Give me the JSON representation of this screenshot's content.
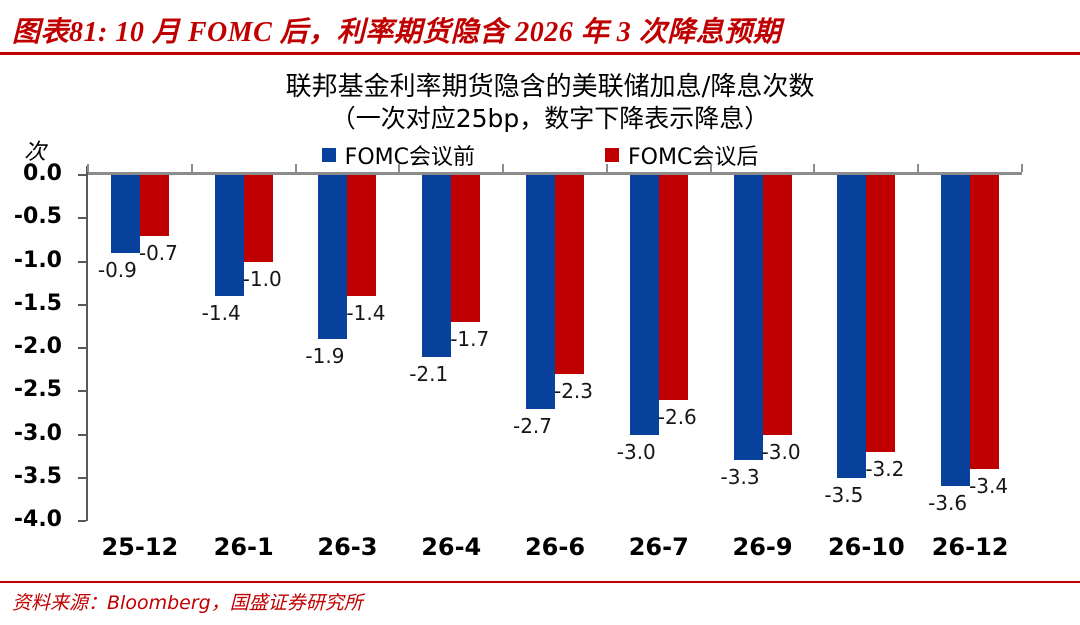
{
  "figure": {
    "title": "图表81: 10 月 FOMC 后，利率期货隐含 2026 年 3 次降息预期",
    "source": "资料来源：Bloomberg，国盛证券研究所"
  },
  "chart_data": {
    "type": "bar",
    "title": "联邦基金利率期货隐含的美联储加息/降息次数",
    "subtitle": "（一次对应25bp，数字下降表示降息）",
    "unit_label": "次",
    "categories": [
      "25-12",
      "26-1",
      "26-3",
      "26-4",
      "26-6",
      "26-7",
      "26-9",
      "26-10",
      "26-12"
    ],
    "series": [
      {
        "name": "FOMC会议前",
        "color": "#08419b",
        "values": [
          -0.9,
          -1.4,
          -1.9,
          -2.1,
          -2.7,
          -3.0,
          -3.3,
          -3.5,
          -3.6
        ]
      },
      {
        "name": "FOMC会议后",
        "color": "#c00000",
        "values": [
          -0.7,
          -1.0,
          -1.4,
          -1.7,
          -2.3,
          -2.6,
          -3.0,
          -3.2,
          -3.4
        ]
      }
    ],
    "y_axis": {
      "min": -4.0,
      "max": 0.0,
      "step": 0.5,
      "tick_labels": [
        "0.0",
        "-0.5",
        "-1.0",
        "-1.5",
        "-2.0",
        "-2.5",
        "-3.0",
        "-3.5",
        "-4.0"
      ]
    },
    "legend_position": "top",
    "grid": false,
    "data_labels": true
  },
  "colors": {
    "accent_red": "#c00000",
    "bar_blue": "#08419b",
    "bar_red": "#c00000",
    "zero_line_gray": "#8c8c8c",
    "axis_gray": "#595959"
  }
}
